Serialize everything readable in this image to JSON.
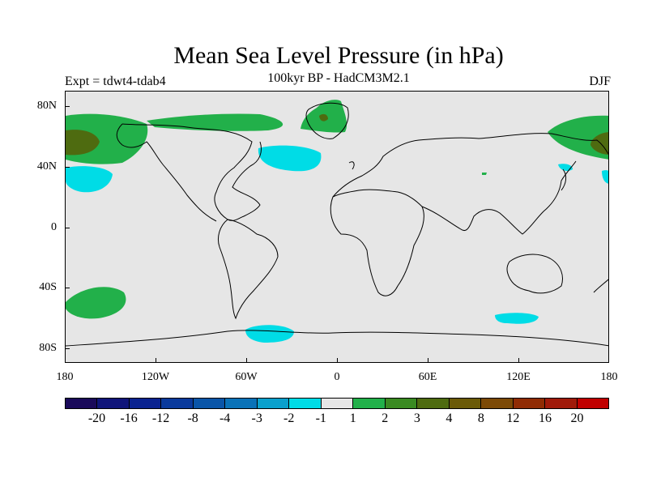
{
  "title": "Mean Sea Level Pressure (in hPa)",
  "subtitle": "100kyr BP - HadCM3M2.1",
  "experiment": "Expt = tdwt4-tdab4",
  "season": "DJF",
  "lat_labels": [
    "80N",
    "40N",
    "0",
    "40S",
    "80S"
  ],
  "lon_labels": [
    "180",
    "120W",
    "60W",
    "0",
    "60E",
    "120E",
    "180"
  ],
  "colorbar": {
    "colors": [
      "#1a0a5a",
      "#10157a",
      "#0a2390",
      "#0a3a9c",
      "#0a55a8",
      "#0a72b8",
      "#0aa0cc",
      "#00dce6",
      "#e6e6e6",
      "#22b04a",
      "#3a8a22",
      "#4e6b10",
      "#6b5a08",
      "#7c4a06",
      "#902c04",
      "#a01a0a",
      "#c00000"
    ],
    "labels": [
      "-20",
      "-16",
      "-12",
      "-8",
      "-4",
      "-3",
      "-2",
      "-1",
      "1",
      "2",
      "3",
      "4",
      "8",
      "12",
      "16",
      "20"
    ]
  },
  "regions": [
    {
      "name": "north-pacific-positive-west",
      "level": "2"
    },
    {
      "name": "north-pacific-core-west",
      "level": "3"
    },
    {
      "name": "north-pacific-positive-east",
      "level": "2"
    },
    {
      "name": "north-pacific-core-east",
      "level": "3"
    },
    {
      "name": "greenland-positive",
      "level": "2"
    },
    {
      "name": "south-pacific-positive",
      "level": "2"
    },
    {
      "name": "north-atlantic-negative",
      "level": "-1"
    },
    {
      "name": "subtropical-pacific-negative",
      "level": "-1"
    },
    {
      "name": "south-atlantic-negative",
      "level": "-1"
    },
    {
      "name": "southern-ocean-negative",
      "level": "-1"
    }
  ]
}
